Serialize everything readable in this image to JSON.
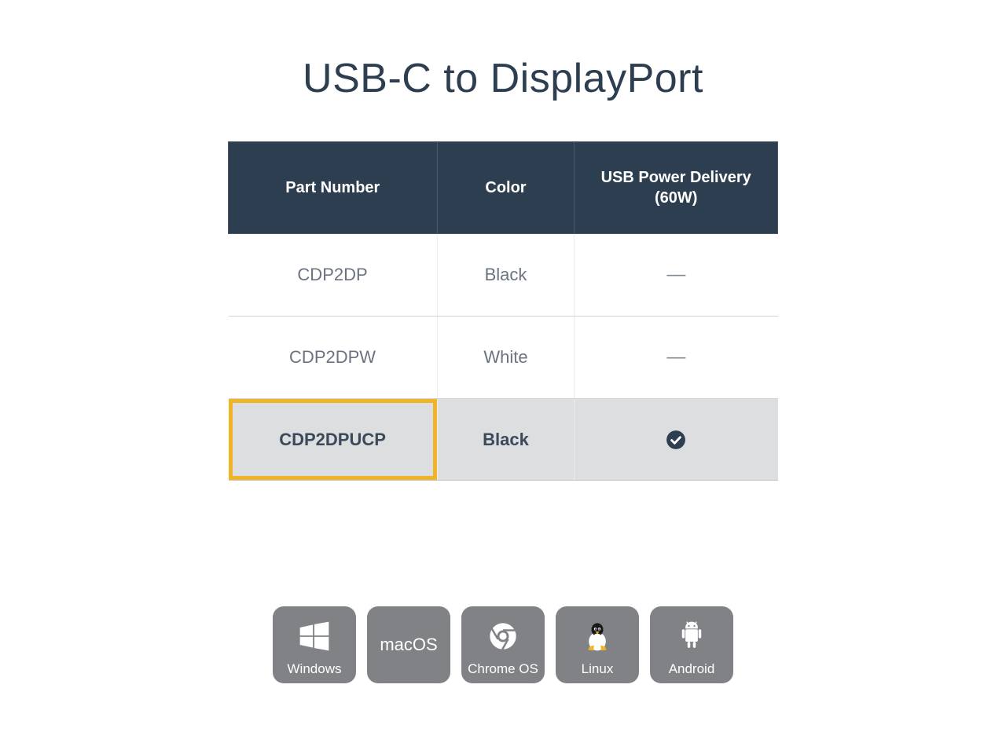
{
  "title": "USB-C to DisplayPort",
  "table": {
    "columns": [
      "Part Number",
      "Color",
      "USB Power Delivery (60W)"
    ],
    "rows": [
      {
        "part": "CDP2DP",
        "color": "Black",
        "pd": "dash",
        "highlight": false
      },
      {
        "part": "CDP2DPW",
        "color": "White",
        "pd": "dash",
        "highlight": false
      },
      {
        "part": "CDP2DPUCP",
        "color": "Black",
        "pd": "check",
        "highlight": true
      }
    ],
    "header_bg": "#2c3e4f",
    "header_fg": "#ffffff",
    "row_bg": "#ffffff",
    "highlight_row_bg": "#dcdedf",
    "highlight_border": "#f0b428",
    "text_color": "#6b7280",
    "highlight_text_color": "#3a4a5a",
    "check_color": "#2c3e4f"
  },
  "os_badges": [
    {
      "name": "windows",
      "label": "Windows",
      "icon": "windows"
    },
    {
      "name": "macos",
      "label": "macOS",
      "icon": "none"
    },
    {
      "name": "chromeos",
      "label": "Chrome OS",
      "icon": "chrome"
    },
    {
      "name": "linux",
      "label": "Linux",
      "icon": "linux"
    },
    {
      "name": "android",
      "label": "Android",
      "icon": "android"
    }
  ],
  "badge_bg": "#808285",
  "badge_fg": "#ffffff",
  "badge_radius": 14
}
